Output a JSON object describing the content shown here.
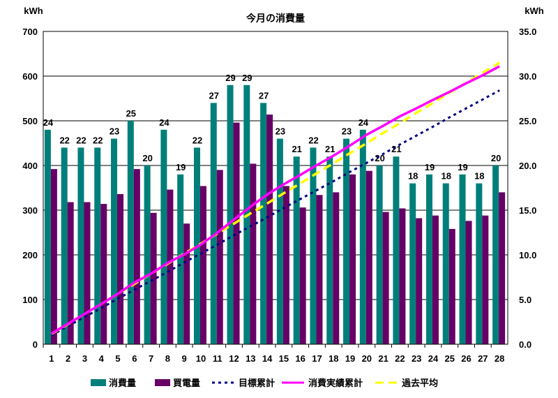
{
  "chart_data": {
    "type": "bar+line",
    "title": "今月の消費量",
    "y_left_label": "kWh",
    "y_right_label": "kWh",
    "y_left_lim": [
      0,
      700
    ],
    "y_left_ticks": [
      "0",
      "100",
      "200",
      "300",
      "400",
      "500",
      "600",
      "700"
    ],
    "y_right_lim": [
      0,
      35
    ],
    "y_right_ticks": [
      "0.0",
      "5.0",
      "10.0",
      "15.0",
      "20.0",
      "25.0",
      "30.0",
      "35.0"
    ],
    "grid": true,
    "legend_position": "bottom",
    "categories": [
      "1",
      "2",
      "3",
      "4",
      "5",
      "6",
      "7",
      "8",
      "9",
      "10",
      "11",
      "12",
      "13",
      "14",
      "15",
      "16",
      "17",
      "18",
      "19",
      "20",
      "21",
      "22",
      "23",
      "24",
      "25",
      "26",
      "27",
      "28"
    ],
    "series": [
      {
        "name": "消費量",
        "type": "bar",
        "axis": "right",
        "color": "#007f7a",
        "values": [
          24,
          22,
          22,
          22,
          23,
          25,
          20,
          24,
          19,
          22,
          27,
          29,
          29,
          27,
          23,
          21,
          22,
          21,
          23,
          24,
          20,
          21,
          18,
          19,
          18,
          19,
          18,
          20
        ],
        "labels": [
          "24",
          "22",
          "22",
          "22",
          "23",
          "25",
          "20",
          "24",
          "19",
          "22",
          "27",
          "29",
          "29",
          "27",
          "23",
          "21",
          "22",
          "21",
          "23",
          "24",
          "20",
          "21",
          "18",
          "19",
          "18",
          "19",
          "18",
          "20"
        ]
      },
      {
        "name": "買電量",
        "type": "bar",
        "axis": "right",
        "color": "#660066",
        "values": [
          19.6,
          15.9,
          15.9,
          15.7,
          16.8,
          19.6,
          14.7,
          17.3,
          13.5,
          17.7,
          19.5,
          24.8,
          20.2,
          25.7,
          17.7,
          15.3,
          16.7,
          17.0,
          19.0,
          19.4,
          14.8,
          15.2,
          14.1,
          14.4,
          12.9,
          13.8,
          14.4,
          17.0
        ]
      },
      {
        "name": "目標累計",
        "type": "line",
        "axis": "left",
        "color": "#000080",
        "style": "dotted",
        "values": [
          20,
          41,
          61,
          81,
          102,
          122,
          142,
          162,
          183,
          203,
          223,
          244,
          264,
          284,
          305,
          325,
          345,
          365,
          386,
          406,
          426,
          447,
          467,
          487,
          508,
          528,
          548,
          568
        ]
      },
      {
        "name": "消費実績累計",
        "type": "line",
        "axis": "left",
        "color": "#ff00ff",
        "style": "solid",
        "values": [
          24,
          46,
          68,
          90,
          113,
          138,
          158,
          182,
          201,
          223,
          250,
          279,
          308,
          335,
          358,
          379,
          401,
          422,
          445,
          469,
          489,
          510,
          528,
          547,
          565,
          584,
          602,
          622
        ]
      },
      {
        "name": "過去平均",
        "type": "line",
        "axis": "left",
        "color": "#ffff00",
        "style": "dashed",
        "values": [
          23,
          45,
          68,
          90,
          113,
          135,
          158,
          180,
          203,
          225,
          248,
          270,
          293,
          315,
          338,
          360,
          383,
          405,
          428,
          450,
          473,
          495,
          518,
          540,
          563,
          585,
          608,
          630
        ]
      }
    ]
  }
}
